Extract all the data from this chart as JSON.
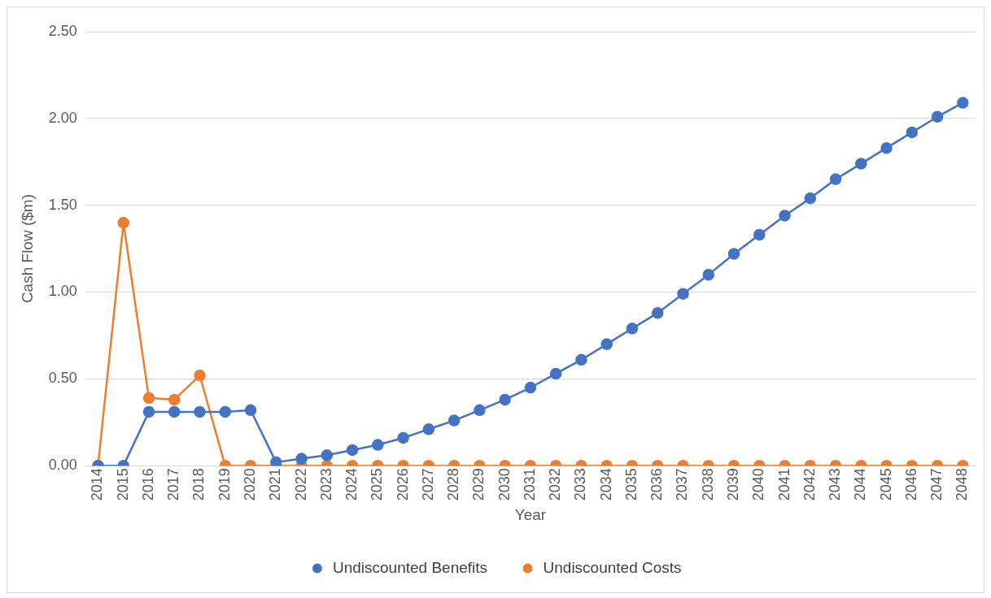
{
  "chart_data": {
    "type": "line",
    "xlabel": "Year",
    "ylabel": "Cash Flow ($m)",
    "categories": [
      "2014",
      "2015",
      "2016",
      "2017",
      "2018",
      "2019",
      "2020",
      "2021",
      "2022",
      "2023",
      "2024",
      "2025",
      "2026",
      "2027",
      "2028",
      "2029",
      "2030",
      "2031",
      "2032",
      "2033",
      "2034",
      "2035",
      "2036",
      "2037",
      "2038",
      "2039",
      "2040",
      "2041",
      "2042",
      "2043",
      "2044",
      "2045",
      "2046",
      "2047",
      "2048"
    ],
    "series": [
      {
        "name": "Undiscounted Benefits",
        "color": "#4472c4",
        "values": [
          0,
          0,
          0.31,
          0.31,
          0.31,
          0.31,
          0.32,
          0.02,
          0.04,
          0.06,
          0.09,
          0.12,
          0.16,
          0.21,
          0.26,
          0.32,
          0.38,
          0.45,
          0.53,
          0.61,
          0.7,
          0.79,
          0.88,
          0.99,
          1.1,
          1.22,
          1.33,
          1.44,
          1.54,
          1.65,
          1.74,
          1.83,
          1.92,
          2.01,
          2.09
        ]
      },
      {
        "name": "Undiscounted Costs",
        "color": "#ed7d31",
        "values": [
          0,
          1.4,
          0.39,
          0.38,
          0.52,
          0,
          0,
          0,
          0,
          0,
          0,
          0,
          0,
          0,
          0,
          0,
          0,
          0,
          0,
          0,
          0,
          0,
          0,
          0,
          0,
          0,
          0,
          0,
          0,
          0,
          0,
          0,
          0,
          0,
          0
        ]
      }
    ],
    "ylim": [
      0,
      2.5
    ],
    "yticks": [
      {
        "value": 0,
        "label": "0.00"
      },
      {
        "value": 0.5,
        "label": "0.50"
      },
      {
        "value": 1,
        "label": "1.00"
      },
      {
        "value": 1.5,
        "label": "1.50"
      },
      {
        "value": 2,
        "label": "2.00"
      },
      {
        "value": 2.5,
        "label": "2.50"
      }
    ],
    "grid": "y",
    "legend": "bottom",
    "marker": "circle",
    "line_style": "solid"
  }
}
